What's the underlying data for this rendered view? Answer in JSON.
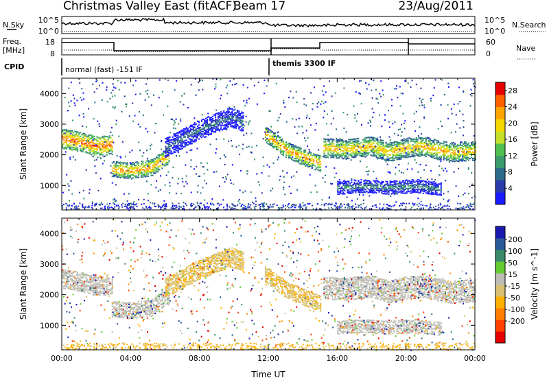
{
  "header": {
    "title": "Christmas Valley East (fitACF)",
    "beam": "Beam 17",
    "date": "23/Aug/2011"
  },
  "left_labels": {
    "nsky": "N.Sky",
    "freq_line1": "Freq.",
    "freq_line2": "[MHz]",
    "cpid": "CPID"
  },
  "right_labels": {
    "nsearch": "N.Search",
    "nave": "Nave"
  },
  "noise_panel": {
    "left_ticks": [
      "10^5",
      "10^0"
    ],
    "right_ticks": [
      "10^5",
      "10^0"
    ]
  },
  "freq_panel": {
    "left_ticks": [
      18,
      8
    ],
    "right_ticks": [
      60,
      0
    ]
  },
  "cpid_panel": {
    "modes": [
      {
        "label": "normal (fast) -151 IF",
        "start_hour": 0
      },
      {
        "label": "themis 3300 IF",
        "start_hour": 12
      }
    ]
  },
  "colors": {
    "power": [
      "#1a1aff",
      "#2a3aa8",
      "#2d6b8a",
      "#3a9a6a",
      "#4fbf4f",
      "#c6e02a",
      "#f5d800",
      "#ffa500",
      "#ff6000",
      "#e60000"
    ],
    "velocity": [
      "#1a1ab0",
      "#2a5a9a",
      "#3a8a6a",
      "#66cc33",
      "#bdbdb5",
      "#d8c070",
      "#ffb000",
      "#ff8000",
      "#ff4000",
      "#e60000"
    ]
  },
  "chart_data": [
    {
      "type": "heatmap",
      "panel": "power",
      "ylabel": "Slant Range [km]",
      "yticks": [
        1000,
        2000,
        3000,
        4000
      ],
      "ylim": [
        200,
        4500
      ],
      "xlim_hours": [
        0,
        24
      ],
      "colorbar_label": "Power [dB]",
      "colorbar_ticks": [
        4,
        8,
        12,
        16,
        20,
        24,
        28
      ],
      "colorbar_range": [
        0,
        30
      ],
      "echo_bands": [
        {
          "x": [
            0,
            1,
            2,
            2.9
          ],
          "y": [
            2550,
            2450,
            2300,
            2350
          ],
          "width": 300,
          "level": 27
        },
        {
          "x": [
            2.9,
            4,
            5.2,
            6.2
          ],
          "y": [
            1550,
            1500,
            1600,
            2000
          ],
          "width": 260,
          "level": 24
        },
        {
          "x": [
            6,
            8,
            9.8,
            10.5
          ],
          "y": [
            2250,
            2850,
            3250,
            3100
          ],
          "width": 320,
          "level": 8
        },
        {
          "x": [
            11.8,
            13,
            14.2,
            15
          ],
          "y": [
            2700,
            2200,
            1900,
            1750
          ],
          "width": 240,
          "level": 24
        },
        {
          "x": [
            15.2,
            16.5,
            18,
            19,
            20,
            21,
            22.5,
            24
          ],
          "y": [
            2250,
            2200,
            2300,
            2100,
            2250,
            2300,
            2100,
            2150
          ],
          "width": 320,
          "level": 23
        },
        {
          "x": [
            16,
            17.5,
            19,
            20.6,
            22
          ],
          "y": [
            950,
            1000,
            950,
            1000,
            900
          ],
          "width": 180,
          "level": 10
        }
      ]
    },
    {
      "type": "heatmap",
      "panel": "velocity",
      "ylabel": "Slant Range [km]",
      "yticks": [
        1000,
        2000,
        3000,
        4000
      ],
      "ylim": [
        200,
        4500
      ],
      "xlabel": "Time UT",
      "xticks": [
        "00:00",
        "04:00",
        "08:00",
        "12:00",
        "16:00",
        "20:00",
        "00:00"
      ],
      "xlim_hours": [
        0,
        24
      ],
      "colorbar_label": "Velocity [m s^-1]",
      "colorbar_ticks": [
        200,
        100,
        50,
        15,
        -15,
        -50,
        -100,
        -200
      ],
      "echo_bands": [
        {
          "x": [
            0,
            1,
            2,
            2.9
          ],
          "y": [
            2550,
            2450,
            2300,
            2350
          ],
          "width": 320,
          "vel": 0
        },
        {
          "x": [
            2.9,
            4,
            5.2,
            6.2
          ],
          "y": [
            1550,
            1500,
            1600,
            2000
          ],
          "width": 260,
          "vel": 0
        },
        {
          "x": [
            6,
            8,
            9.8,
            10.5
          ],
          "y": [
            2250,
            2850,
            3250,
            3100
          ],
          "width": 320,
          "vel": -40
        },
        {
          "x": [
            11.8,
            13,
            14.2,
            15
          ],
          "y": [
            2700,
            2200,
            1900,
            1750
          ],
          "width": 240,
          "vel": -30
        },
        {
          "x": [
            15.2,
            16.5,
            18,
            19,
            20,
            21,
            22.5,
            24
          ],
          "y": [
            2250,
            2200,
            2300,
            2100,
            2250,
            2300,
            2100,
            2150
          ],
          "width": 340,
          "vel": 0
        },
        {
          "x": [
            16,
            17.5,
            19,
            20.6,
            22
          ],
          "y": [
            950,
            1000,
            950,
            1000,
            900
          ],
          "width": 180,
          "vel": 0
        }
      ]
    }
  ]
}
